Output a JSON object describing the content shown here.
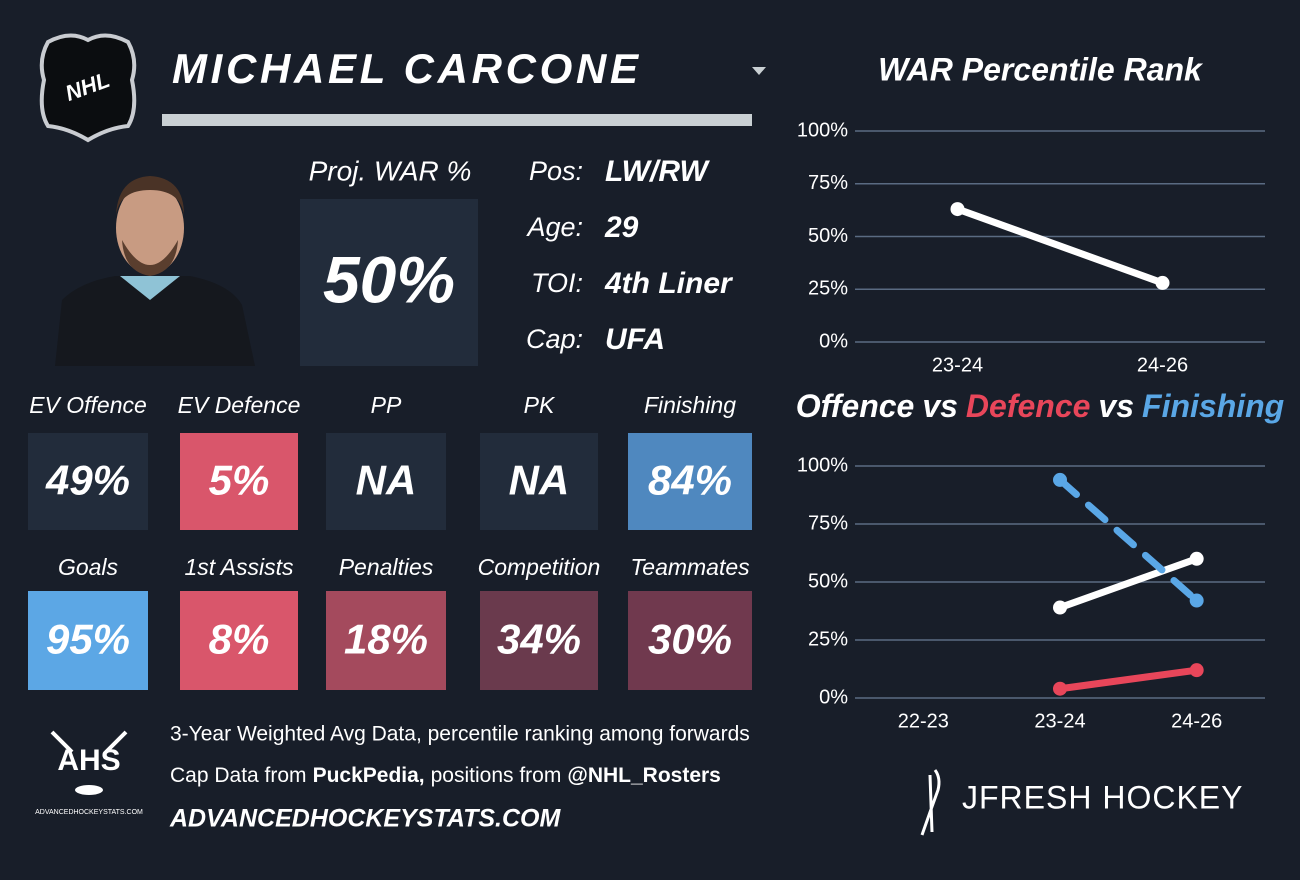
{
  "header": {
    "logo": "NHL",
    "player": "MICHAEL CARCONE"
  },
  "projection": {
    "label": "Proj. WAR %",
    "value": "50%"
  },
  "bio": [
    {
      "label": "Pos:",
      "value": "LW/RW"
    },
    {
      "label": "Age:",
      "value": "29"
    },
    {
      "label": "TOI:",
      "value": "4th Liner"
    },
    {
      "label": "Cap:",
      "value": "UFA"
    }
  ],
  "tiles": [
    {
      "label": "EV Offence",
      "value": "49%",
      "color": "#222c3b"
    },
    {
      "label": "EV Defence",
      "value": "5%",
      "color": "#d9566b"
    },
    {
      "label": "PP",
      "value": "NA",
      "color": "#222c3b"
    },
    {
      "label": "PK",
      "value": "NA",
      "color": "#222c3b"
    },
    {
      "label": "Finishing",
      "value": "84%",
      "color": "#4f88bf"
    },
    {
      "label": "Goals",
      "value": "95%",
      "color": "#5ca7e5"
    },
    {
      "label": "1st Assists",
      "value": "8%",
      "color": "#d9566b"
    },
    {
      "label": "Penalties",
      "value": "18%",
      "color": "#a44a5d"
    },
    {
      "label": "Competition",
      "value": "34%",
      "color": "#6a3a4d"
    },
    {
      "label": "Teammates",
      "value": "30%",
      "color": "#70394e"
    }
  ],
  "footer": {
    "logo": "AHS",
    "logo_caption": "ADVANCEDHOCKEYSTATS.COM",
    "note": "3-Year Weighted Avg Data, percentile ranking among forwards",
    "credits": [
      "Cap Data from",
      "PuckPedia,",
      "positions from",
      "@NHL_Rosters"
    ],
    "site": "ADVANCEDHOCKEYSTATS.COM",
    "brand": "JFRESH HOCKEY"
  },
  "chart_data": [
    {
      "type": "line",
      "title": "WAR Percentile Rank",
      "categories": [
        "23-24",
        "24-26"
      ],
      "values": [
        63,
        28
      ],
      "color": "#ffffff",
      "ylim": [
        0,
        100
      ],
      "yticks": [
        {
          "value": 0,
          "label": "0%"
        },
        {
          "value": 25,
          "label": "25%"
        },
        {
          "value": 50,
          "label": "50%"
        },
        {
          "value": 75,
          "label": "75%"
        },
        {
          "value": 100,
          "label": "100%"
        }
      ],
      "grid": true
    },
    {
      "type": "line",
      "legend_separator": "vs",
      "categories": [
        "22-23",
        "23-24",
        "24-26"
      ],
      "series": [
        {
          "name": "Offence",
          "color": "#ffffff",
          "values": [
            null,
            39,
            60
          ]
        },
        {
          "name": "Defence",
          "color": "#e8465a",
          "values": [
            null,
            4,
            12
          ]
        },
        {
          "name": "Finishing",
          "color": "#5aa7e6",
          "values": [
            null,
            94,
            42
          ],
          "dash": true
        }
      ],
      "ylim": [
        0,
        100
      ],
      "yticks": [
        {
          "value": 0,
          "label": "0%"
        },
        {
          "value": 25,
          "label": "25%"
        },
        {
          "value": 50,
          "label": "50%"
        },
        {
          "value": 75,
          "label": "75%"
        },
        {
          "value": 100,
          "label": "100%"
        }
      ],
      "grid": true
    }
  ]
}
